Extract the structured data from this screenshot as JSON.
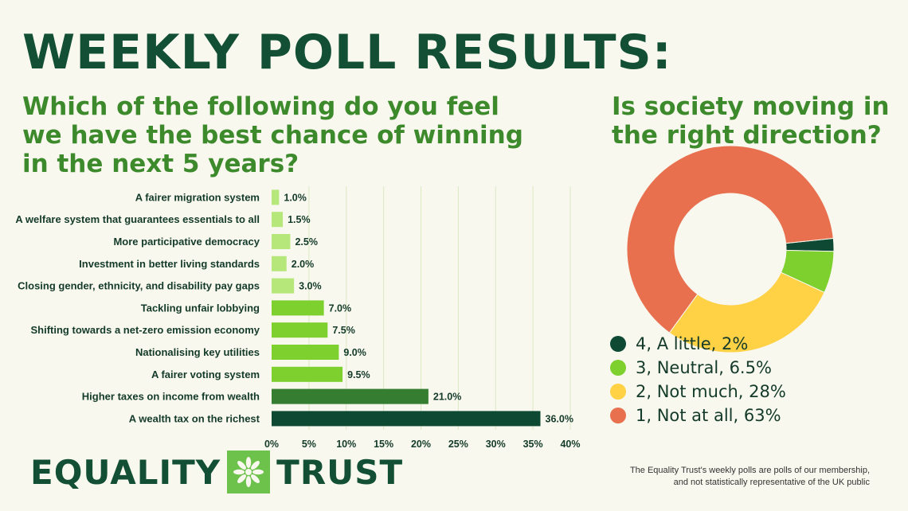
{
  "title": "WEEKLY POLL RESULTS:",
  "question_left": "Which of the following do you feel we have the best chance of winning in the next 5 years?",
  "question_right": "Is society moving in the right direction?",
  "brand": {
    "word_left": "EQUALITY",
    "word_right": "TRUST",
    "logo_icon": "sunburst-logo-icon"
  },
  "disclaimer": {
    "line1": "The Equality Trust's weekly polls are polls of our membership,",
    "line2": "and not statistically representative of the UK public"
  },
  "colors": {
    "light": "#b6e77a",
    "mid": "#7ed02e",
    "dark": "#347d31",
    "darkest": "#0e4a33",
    "pie_4": "#0e4a33",
    "pie_3": "#7ed02e",
    "pie_2": "#ffd145",
    "pie_1": "#e8704f"
  },
  "chart_data": [
    {
      "type": "bar",
      "orientation": "horizontal",
      "categories": [
        "A fairer migration system",
        "A welfare system that guarantees essentials to all",
        "More participative democracy",
        "Investment in better living standards",
        "Closing gender, ethnicity, and disability pay gaps",
        "Tackling unfair lobbying",
        "Shifting towards a net-zero emission economy",
        "Nationalising key utilities",
        "A fairer voting system",
        "Higher taxes on income from wealth",
        "A wealth tax on the richest"
      ],
      "values": [
        1.0,
        1.5,
        2.5,
        2.0,
        3.0,
        7.0,
        7.5,
        9.0,
        9.5,
        21.0,
        36.0
      ],
      "data_labels": [
        "1.0%",
        "1.5%",
        "2.5%",
        "2.0%",
        "3.0%",
        "7.0%",
        "7.5%",
        "9.0%",
        "9.5%",
        "21.0%",
        "36.0%"
      ],
      "bar_color_keys": [
        "light",
        "light",
        "light",
        "light",
        "light",
        "mid",
        "mid",
        "mid",
        "mid",
        "dark",
        "darkest"
      ],
      "xlim": [
        0,
        40
      ],
      "xticks": [
        0,
        5,
        10,
        15,
        20,
        25,
        30,
        35,
        40
      ],
      "xtick_labels": [
        "0%",
        "5%",
        "10%",
        "15%",
        "20%",
        "25%",
        "30%",
        "35%",
        "40%"
      ],
      "grid": "vertical"
    },
    {
      "type": "pie",
      "variant": "donut",
      "labels": [
        "4, A little, 2%",
        "3, Neutral, 6.5%",
        "2, Not much, 28%",
        "1, Not at all, 63%"
      ],
      "values": [
        2,
        6.5,
        28,
        63
      ],
      "color_keys": [
        "pie_4",
        "pie_3",
        "pie_2",
        "pie_1"
      ],
      "legend_position": "bottom-left"
    }
  ]
}
